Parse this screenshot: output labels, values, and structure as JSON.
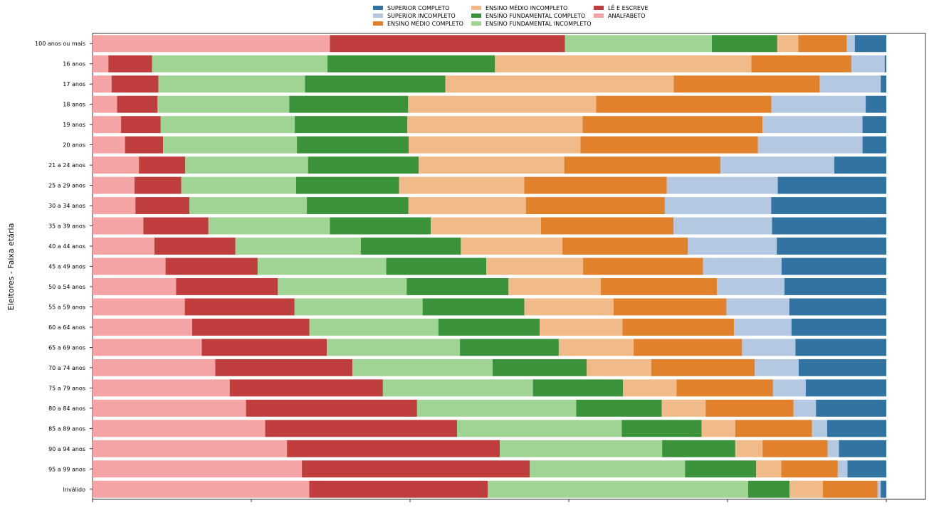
{
  "chart_data": {
    "type": "bar",
    "orientation": "horizontal",
    "stacked": true,
    "normalized": true,
    "ylabel": "Eleitores - Faixa etária",
    "xlabel": "",
    "xlim": [
      0,
      1
    ],
    "grid": false,
    "legend_position": "top-center",
    "categories": [
      "100 anos ou mais",
      "16 anos",
      "17 anos",
      "18 anos",
      "19 anos",
      "20 anos",
      "21 a 24 anos",
      "25 a 29 anos",
      "30 a 34 anos",
      "35 a 39 anos",
      "40 a 44 anos",
      "45 a 49 anos",
      "50 a 54 anos",
      "55 a 59 anos",
      "60 a 64 anos",
      "65 a 69 anos",
      "70 a 74 anos",
      "75 a 79 anos",
      "80 a 84 anos",
      "85 a 89 anos",
      "90 a 94 anos",
      "95 a 99 anos",
      "Inválido"
    ],
    "series": [
      {
        "name": "ANALFABETO",
        "color": "#f4a4a4",
        "values": [
          0.294,
          0.02,
          0.024,
          0.031,
          0.036,
          0.041,
          0.057,
          0.053,
          0.054,
          0.064,
          0.078,
          0.092,
          0.105,
          0.116,
          0.125,
          0.137,
          0.154,
          0.172,
          0.192,
          0.216,
          0.242,
          0.259,
          0.273
        ]
      },
      {
        "name": "LÊ E ESCREVE",
        "color": "#c03d3e",
        "values": [
          0.291,
          0.055,
          0.059,
          0.051,
          0.05,
          0.048,
          0.057,
          0.059,
          0.068,
          0.082,
          0.102,
          0.116,
          0.128,
          0.138,
          0.147,
          0.157,
          0.172,
          0.192,
          0.214,
          0.24,
          0.265,
          0.282,
          0.225
        ]
      },
      {
        "name": "ENSINO FUNDAMENTAL INCOMPLETO",
        "color": "#a0d495",
        "values": [
          0.182,
          0.221,
          0.185,
          0.166,
          0.169,
          0.169,
          0.151,
          0.145,
          0.148,
          0.153,
          0.158,
          0.162,
          0.162,
          0.161,
          0.162,
          0.167,
          0.176,
          0.188,
          0.199,
          0.206,
          0.202,
          0.192,
          0.328
        ]
      },
      {
        "name": "ENSINO FUNDAMENTAL COMPLETO",
        "color": "#3a923a",
        "values": [
          0.081,
          0.211,
          0.177,
          0.15,
          0.142,
          0.141,
          0.136,
          0.13,
          0.128,
          0.127,
          0.126,
          0.126,
          0.128,
          0.128,
          0.127,
          0.124,
          0.118,
          0.113,
          0.107,
          0.1,
          0.091,
          0.088,
          0.052
        ]
      },
      {
        "name": "ENSINO MÉDIO INCOMPLETO",
        "color": "#f0bb88",
        "values": [
          0.026,
          0.323,
          0.288,
          0.237,
          0.221,
          0.217,
          0.179,
          0.158,
          0.148,
          0.139,
          0.128,
          0.122,
          0.116,
          0.112,
          0.104,
          0.094,
          0.081,
          0.067,
          0.055,
          0.042,
          0.034,
          0.031,
          0.042
        ]
      },
      {
        "name": "ENSINO MÉDIO COMPLETO",
        "color": "#e1812c",
        "values": [
          0.06,
          0.126,
          0.184,
          0.221,
          0.227,
          0.224,
          0.192,
          0.18,
          0.175,
          0.167,
          0.158,
          0.151,
          0.146,
          0.142,
          0.14,
          0.136,
          0.13,
          0.121,
          0.11,
          0.096,
          0.081,
          0.07,
          0.069
        ]
      },
      {
        "name": "SUPERIOR INCOMPLETO",
        "color": "#b5c8e2",
        "values": [
          0.01,
          0.042,
          0.077,
          0.119,
          0.126,
          0.132,
          0.14,
          0.14,
          0.134,
          0.124,
          0.112,
          0.099,
          0.085,
          0.079,
          0.072,
          0.067,
          0.055,
          0.041,
          0.028,
          0.019,
          0.014,
          0.012,
          0.004
        ]
      },
      {
        "name": "SUPERIOR COMPLETO",
        "color": "#3274a1",
        "values": [
          0.039,
          0.002,
          0.007,
          0.026,
          0.03,
          0.03,
          0.064,
          0.137,
          0.145,
          0.144,
          0.138,
          0.132,
          0.128,
          0.122,
          0.119,
          0.114,
          0.11,
          0.101,
          0.088,
          0.074,
          0.059,
          0.048,
          0.007
        ]
      }
    ],
    "legend_order": [
      "SUPERIOR COMPLETO",
      "SUPERIOR INCOMPLETO",
      "ENSINO MÉDIO COMPLETO",
      "ENSINO MÉDIO INCOMPLETO",
      "ENSINO FUNDAMENTAL COMPLETO",
      "ENSINO FUNDAMENTAL INCOMPLETO",
      "LÊ E ESCREVE",
      "ANALFABETO"
    ]
  }
}
